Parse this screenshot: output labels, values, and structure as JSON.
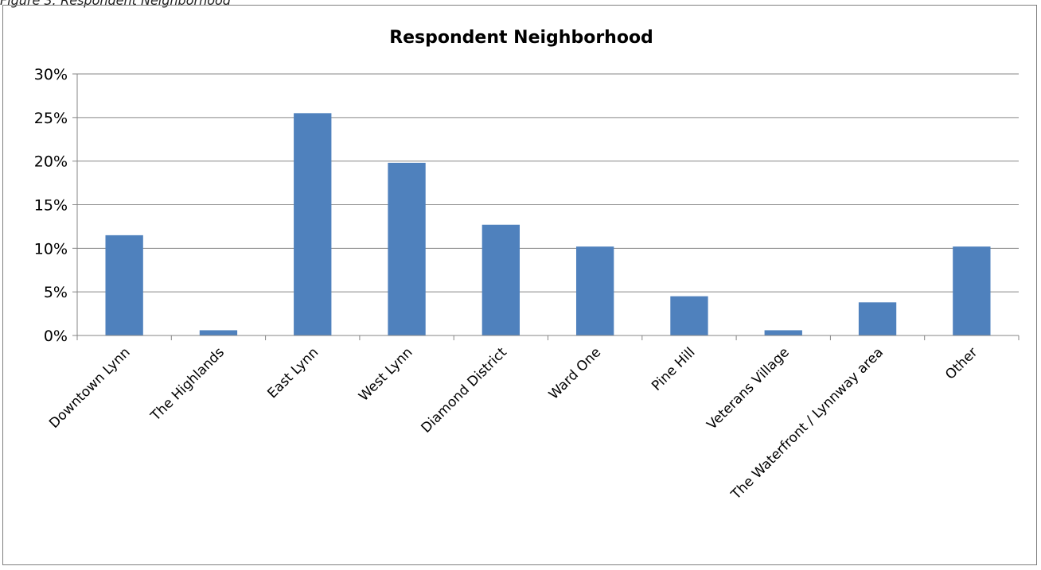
{
  "caption": "Figure 3: Respondent Neighborhood",
  "chart_data": {
    "type": "bar",
    "title": "Respondent Neighborhood",
    "categories": [
      "Downtown Lynn",
      "The Highlands",
      "East Lynn",
      "West Lynn",
      "Diamond District",
      "Ward One",
      "Pine Hill",
      "Veterans Village",
      "The Waterfront / Lynnway area",
      "Other"
    ],
    "values": [
      11.5,
      0.6,
      25.5,
      19.8,
      12.7,
      10.2,
      4.5,
      0.6,
      3.8,
      10.2
    ],
    "unit": "%",
    "ylim": [
      0,
      30
    ],
    "ytick_labels": [
      "0%",
      "5%",
      "10%",
      "15%",
      "20%",
      "25%",
      "30%"
    ],
    "xlabel": "",
    "ylabel": "",
    "grid": true,
    "legend": "none",
    "bar_color": "#4f81bd",
    "grid_color": "#868686",
    "axis_color": "#868686"
  }
}
